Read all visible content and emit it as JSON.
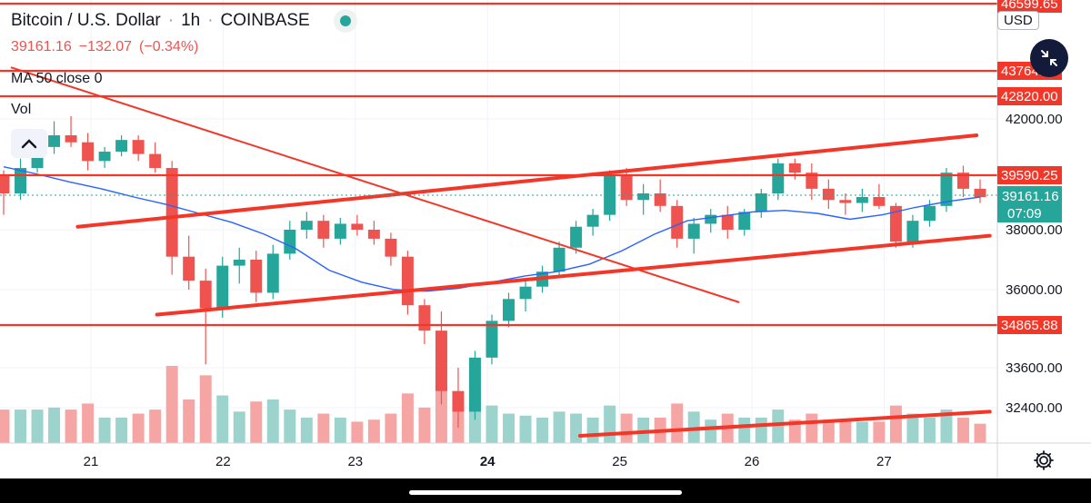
{
  "header": {
    "symbol": "Bitcoin / U.S. Dollar",
    "separator": "·",
    "interval": "1h",
    "exchange": "COINBASE",
    "last_price": "39161.16",
    "change": "−132.07",
    "change_pct": "(−0.34%)",
    "indicator": "MA 50 close 0",
    "volume_label": "Vol"
  },
  "currency": "USD",
  "icons": {
    "collapse": "chevron-up-icon",
    "fullscreen": "collapse-arrows-icon",
    "settings": "gear-icon"
  },
  "colors": {
    "up": "#26a69a",
    "down": "#ef5350",
    "ma": "#2962ff",
    "drawing": "#f23628",
    "current_price_badge": "#26a69a"
  },
  "chart_data": {
    "type": "candlestick",
    "symbol": "BTCUSD",
    "timeframe": "1h",
    "x_ticks": [
      "21",
      "22",
      "23",
      "24",
      "25",
      "26",
      "27"
    ],
    "y_ticks": [
      "46",
      "42000.00",
      "38000.00",
      "36000.00",
      "33600.00",
      "32400.00"
    ],
    "ylim": [
      31700,
      47000
    ],
    "current_price": 39161.16,
    "countdown": "07:09",
    "price_levels": [
      {
        "label": "46599.65",
        "value": 46599.65
      },
      {
        "label": "43764.47",
        "value": 43764.47
      },
      {
        "label": "42820.00",
        "value": 42820.0
      },
      {
        "label": "39590.25",
        "value": 39590.25
      },
      {
        "label": "34865.88",
        "value": 34865.88
      }
    ],
    "ma_series": [
      39950,
      39650,
      39450,
      39300,
      39100,
      38850,
      38550,
      38250,
      37850,
      37350,
      36650,
      36250,
      36000,
      35950,
      36050,
      36250,
      36450,
      36600,
      36850,
      37300,
      37850,
      38300,
      38450,
      38600,
      38650,
      38550,
      38350,
      38500,
      38750,
      38950,
      39100
    ],
    "candles": [
      [
        39600,
        39800,
        38500,
        39200
      ],
      [
        39200,
        40300,
        39000,
        39900
      ],
      [
        39900,
        41000,
        39700,
        40800
      ],
      [
        40800,
        41900,
        40500,
        41300
      ],
      [
        41300,
        42100,
        40800,
        41000
      ],
      [
        41000,
        41400,
        39800,
        40200
      ],
      [
        40200,
        40800,
        39900,
        40600
      ],
      [
        40600,
        41300,
        40400,
        41100
      ],
      [
        41100,
        41300,
        40200,
        40500
      ],
      [
        40500,
        41000,
        39700,
        39900
      ],
      [
        39900,
        40200,
        36500,
        37100
      ],
      [
        37100,
        37800,
        36000,
        36300
      ],
      [
        36300,
        36700,
        33700,
        35400
      ],
      [
        35400,
        37100,
        35100,
        36800
      ],
      [
        36800,
        37400,
        36200,
        37000
      ],
      [
        37000,
        37300,
        35600,
        35900
      ],
      [
        35900,
        37500,
        35700,
        37200
      ],
      [
        37200,
        38300,
        37000,
        38000
      ],
      [
        38000,
        38600,
        37700,
        38300
      ],
      [
        38300,
        38500,
        37400,
        37700
      ],
      [
        37700,
        38400,
        37500,
        38200
      ],
      [
        38200,
        38500,
        37800,
        38000
      ],
      [
        38000,
        38300,
        37500,
        37700
      ],
      [
        37700,
        37900,
        36800,
        37100
      ],
      [
        37100,
        37300,
        35200,
        35500
      ],
      [
        35500,
        35700,
        34300,
        34700
      ],
      [
        34700,
        35300,
        32500,
        32900
      ],
      [
        32900,
        33600,
        31900,
        32300
      ],
      [
        32300,
        34100,
        32100,
        33900
      ],
      [
        33900,
        35200,
        33700,
        35000
      ],
      [
        35000,
        35900,
        34800,
        35700
      ],
      [
        35700,
        36300,
        35300,
        36100
      ],
      [
        36100,
        36800,
        35900,
        36600
      ],
      [
        36600,
        37600,
        36400,
        37400
      ],
      [
        37400,
        38300,
        37200,
        38100
      ],
      [
        38100,
        38700,
        37800,
        38500
      ],
      [
        38500,
        39800,
        38300,
        39600
      ],
      [
        39600,
        39900,
        38800,
        39000
      ],
      [
        39000,
        39400,
        38500,
        39200
      ],
      [
        39200,
        39500,
        38600,
        38800
      ],
      [
        38800,
        39000,
        37400,
        37700
      ],
      [
        37700,
        38400,
        37200,
        38200
      ],
      [
        38200,
        38700,
        37900,
        38500
      ],
      [
        38500,
        38800,
        37700,
        38000
      ],
      [
        38000,
        38700,
        37800,
        38600
      ],
      [
        38600,
        39300,
        38400,
        39200
      ],
      [
        39200,
        40300,
        39000,
        40100
      ],
      [
        40100,
        40300,
        39500,
        39700
      ],
      [
        39700,
        40100,
        39000,
        39300
      ],
      [
        39300,
        39500,
        38700,
        39000
      ],
      [
        39000,
        39200,
        38500,
        38900
      ],
      [
        38900,
        39300,
        38600,
        39100
      ],
      [
        39100,
        39400,
        38700,
        38800
      ],
      [
        38800,
        38900,
        37400,
        37600
      ],
      [
        37600,
        38500,
        37400,
        38300
      ],
      [
        38300,
        39000,
        38100,
        38800
      ],
      [
        38800,
        39900,
        38600,
        39700
      ],
      [
        39700,
        40000,
        39100,
        39300
      ],
      [
        39300,
        39500,
        38900,
        39100
      ]
    ],
    "trend_lines": [
      {
        "name": "upper channel",
        "from": [
          "20.9",
          38100
        ],
        "to": [
          "27.7",
          41300
        ]
      },
      {
        "name": "lower channel",
        "from": [
          "21.5",
          35200
        ],
        "to": [
          "27.8",
          37800
        ]
      },
      {
        "name": "descending",
        "from": [
          "20.4",
          43900
        ],
        "to": [
          "25.9",
          35600
        ]
      },
      {
        "name": "volume support",
        "from": [
          "24.7",
          31700
        ],
        "to": [
          "27.8",
          32300
        ]
      }
    ],
    "grid": true,
    "legend": "top-left"
  }
}
